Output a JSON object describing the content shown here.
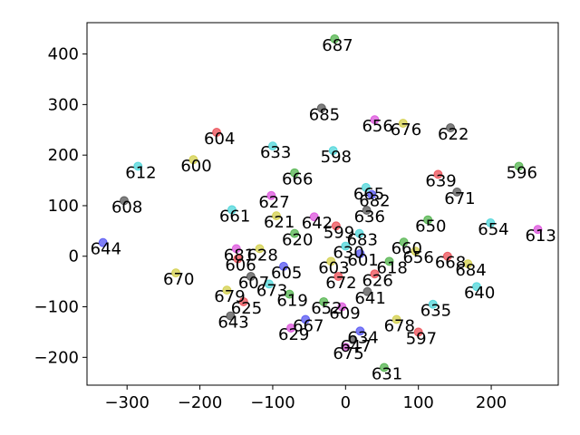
{
  "chart_data": {
    "type": "scatter",
    "title": "",
    "xlabel": "",
    "ylabel": "",
    "xlim": [
      -355,
      292
    ],
    "ylim": [
      -255,
      462
    ],
    "xticks": [
      -300,
      -200,
      -100,
      0,
      100,
      200
    ],
    "yticks": [
      -200,
      -100,
      0,
      100,
      200,
      300,
      400
    ],
    "grid": false,
    "colors": {
      "red": "#e8202a",
      "cyan": "#1fcbd0",
      "blue": "#2a2af0",
      "yellow": "#c8c31a",
      "green": "#25a01e",
      "magenta": "#d427d4",
      "black": "#2a2a2a"
    },
    "points": [
      {
        "label": "687",
        "x": -15,
        "y": 430,
        "color": "green"
      },
      {
        "label": "685",
        "x": -33,
        "y": 293,
        "color": "black"
      },
      {
        "label": "676",
        "x": 79,
        "y": 263,
        "color": "yellow"
      },
      {
        "label": "656",
        "x": 40,
        "y": 270,
        "color": "magenta"
      },
      {
        "label": "604",
        "x": -177,
        "y": 245,
        "color": "red"
      },
      {
        "label": "622",
        "x": 144,
        "y": 254,
        "color": "black"
      },
      {
        "label": "598",
        "x": -17,
        "y": 209,
        "color": "cyan"
      },
      {
        "label": "600",
        "x": -209,
        "y": 191,
        "color": "yellow"
      },
      {
        "label": "633",
        "x": -100,
        "y": 218,
        "color": "cyan"
      },
      {
        "label": "666",
        "x": -70,
        "y": 165,
        "color": "green"
      },
      {
        "label": "612",
        "x": -285,
        "y": 178,
        "color": "cyan"
      },
      {
        "label": "596",
        "x": 238,
        "y": 178,
        "color": "green"
      },
      {
        "label": "608",
        "x": -304,
        "y": 110,
        "color": "black"
      },
      {
        "label": "639",
        "x": 127,
        "y": 162,
        "color": "red"
      },
      {
        "label": "671",
        "x": 153,
        "y": 127,
        "color": "black"
      },
      {
        "label": "665",
        "x": 28,
        "y": 136,
        "color": "cyan"
      },
      {
        "label": "627",
        "x": -102,
        "y": 120,
        "color": "magenta"
      },
      {
        "label": "682",
        "x": 36,
        "y": 122,
        "color": "blue"
      },
      {
        "label": "636",
        "x": 29,
        "y": 91,
        "color": "black"
      },
      {
        "label": "621",
        "x": -95,
        "y": 80,
        "color": "yellow"
      },
      {
        "label": "650",
        "x": 113,
        "y": 72,
        "color": "green"
      },
      {
        "label": "654",
        "x": 199,
        "y": 66,
        "color": "cyan"
      },
      {
        "label": "661",
        "x": -156,
        "y": 92,
        "color": "cyan"
      },
      {
        "label": "642",
        "x": -43,
        "y": 78,
        "color": "magenta"
      },
      {
        "label": "599",
        "x": -13,
        "y": 60,
        "color": "red"
      },
      {
        "label": "620",
        "x": -70,
        "y": 45,
        "color": "green"
      },
      {
        "label": "613",
        "x": 264,
        "y": 53,
        "color": "magenta"
      },
      {
        "label": "644",
        "x": -333,
        "y": 27,
        "color": "blue"
      },
      {
        "label": "660",
        "x": 80,
        "y": 28,
        "color": "green"
      },
      {
        "label": "683",
        "x": 19,
        "y": 45,
        "color": "cyan"
      },
      {
        "label": "681",
        "x": -150,
        "y": 15,
        "color": "magenta"
      },
      {
        "label": "670",
        "x": -233,
        "y": -33,
        "color": "yellow"
      },
      {
        "label": "628",
        "x": -118,
        "y": 15,
        "color": "yellow"
      },
      {
        "label": "606",
        "x": -148,
        "y": -5,
        "color": "red"
      },
      {
        "label": "679",
        "x": -163,
        "y": -67,
        "color": "yellow"
      },
      {
        "label": "684",
        "x": 168,
        "y": -15,
        "color": "yellow"
      },
      {
        "label": "640",
        "x": 180,
        "y": -60,
        "color": "cyan"
      },
      {
        "label": "656",
        "x": 96,
        "y": 10,
        "color": "yellow"
      },
      {
        "label": "668",
        "x": 140,
        "y": 0,
        "color": "red"
      },
      {
        "label": "605",
        "x": -85,
        "y": -20,
        "color": "blue"
      },
      {
        "label": "607",
        "x": -130,
        "y": -40,
        "color": "black"
      },
      {
        "label": "673",
        "x": -105,
        "y": -55,
        "color": "cyan"
      },
      {
        "label": "625",
        "x": -140,
        "y": -90,
        "color": "red"
      },
      {
        "label": "619",
        "x": -77,
        "y": -75,
        "color": "green"
      },
      {
        "label": "652",
        "x": -30,
        "y": -90,
        "color": "green"
      },
      {
        "label": "643",
        "x": -158,
        "y": -118,
        "color": "black"
      },
      {
        "label": "629",
        "x": -75,
        "y": -142,
        "color": "magenta"
      },
      {
        "label": "667",
        "x": -55,
        "y": -125,
        "color": "blue"
      },
      {
        "label": "597",
        "x": 100,
        "y": -150,
        "color": "red"
      },
      {
        "label": "631",
        "x": 53,
        "y": -220,
        "color": "green"
      },
      {
        "label": "678",
        "x": 70,
        "y": -125,
        "color": "yellow"
      },
      {
        "label": "635",
        "x": 120,
        "y": -95,
        "color": "cyan"
      },
      {
        "label": "647",
        "x": 10,
        "y": -165,
        "color": "black"
      },
      {
        "label": "675",
        "x": 0,
        "y": -180,
        "color": "magenta"
      },
      {
        "label": "634",
        "x": 20,
        "y": -148,
        "color": "blue"
      },
      {
        "label": "609",
        "x": -5,
        "y": -100,
        "color": "magenta"
      },
      {
        "label": "626",
        "x": 40,
        "y": -35,
        "color": "red"
      },
      {
        "label": "601",
        "x": 20,
        "y": 5,
        "color": "blue"
      },
      {
        "label": "630",
        "x": 0,
        "y": 20,
        "color": "cyan"
      },
      {
        "label": "618",
        "x": 60,
        "y": -10,
        "color": "green"
      },
      {
        "label": "603",
        "x": -20,
        "y": -10,
        "color": "yellow"
      },
      {
        "label": "641",
        "x": 30,
        "y": -70,
        "color": "black"
      },
      {
        "label": "672",
        "x": -10,
        "y": -40,
        "color": "red"
      }
    ]
  }
}
